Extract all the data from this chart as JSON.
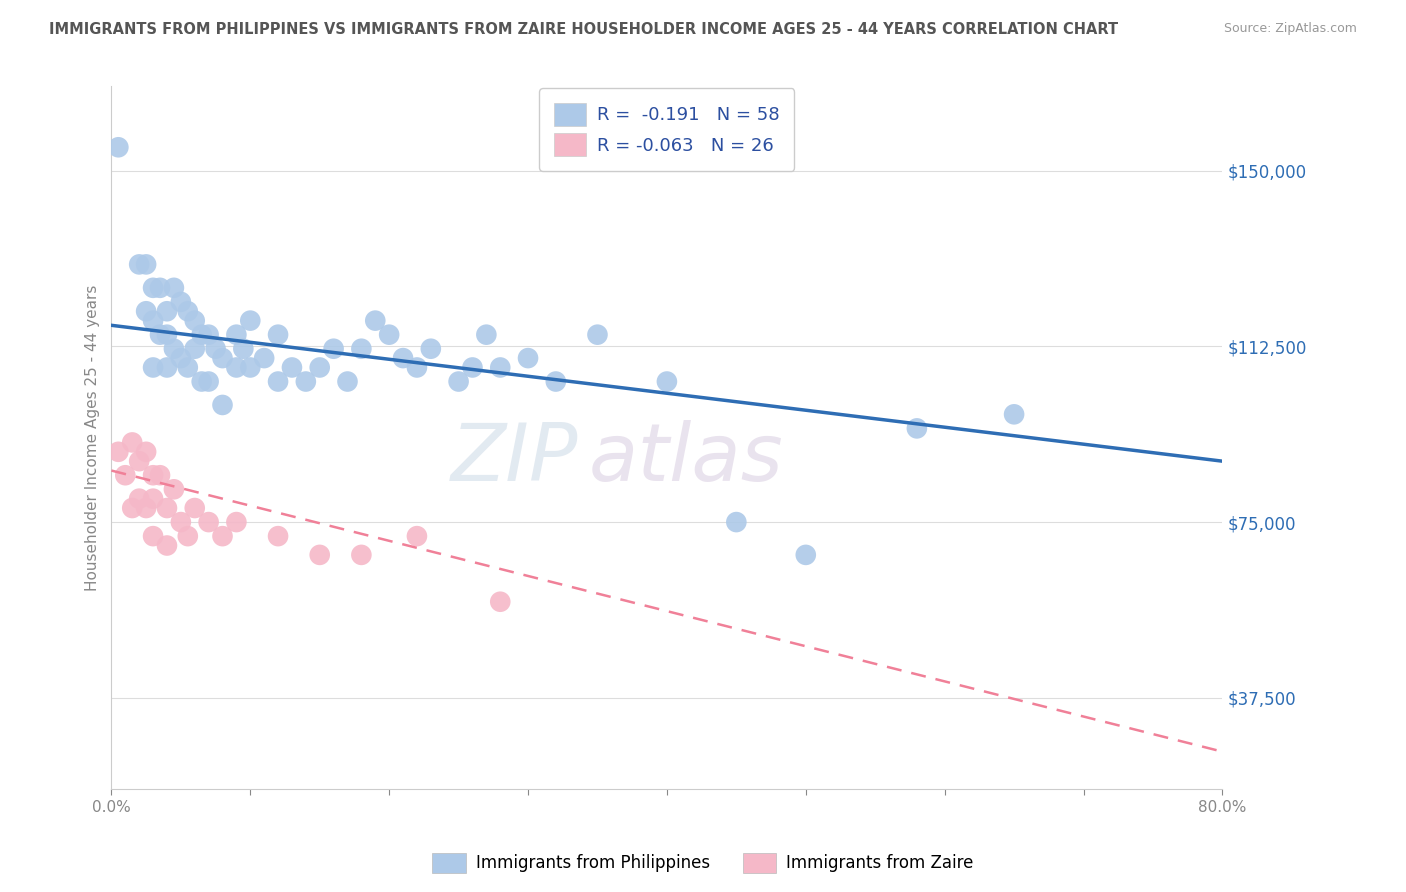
{
  "title": "IMMIGRANTS FROM PHILIPPINES VS IMMIGRANTS FROM ZAIRE HOUSEHOLDER INCOME AGES 25 - 44 YEARS CORRELATION CHART",
  "source": "Source: ZipAtlas.com",
  "ylabel": "Householder Income Ages 25 - 44 years",
  "xlim": [
    0.0,
    0.8
  ],
  "ylim": [
    18000,
    168000
  ],
  "yticks": [
    37500,
    75000,
    112500,
    150000
  ],
  "ytick_labels": [
    "$37,500",
    "$75,000",
    "$112,500",
    "$150,000"
  ],
  "xticks": [
    0.0,
    0.1,
    0.2,
    0.3,
    0.4,
    0.5,
    0.6,
    0.7,
    0.8
  ],
  "xtick_labels": [
    "0.0%",
    "",
    "",
    "",
    "",
    "",
    "",
    "",
    "80.0%"
  ],
  "philippines_R": "-0.191",
  "philippines_N": "58",
  "zaire_R": "-0.063",
  "zaire_N": "26",
  "philippines_color": "#adc9e8",
  "zaire_color": "#f5b8c8",
  "philippines_line_color": "#2e6db4",
  "zaire_line_color": "#f08098",
  "background_color": "#ffffff",
  "grid_color": "#dddddd",
  "watermark_zip": "ZIP",
  "watermark_atlas": "atlas",
  "title_color": "#555555",
  "source_color": "#999999",
  "legend_text_color": "#2c4fa0",
  "right_label_color": "#2e6db4",
  "axis_color": "#cccccc",
  "tick_color": "#888888",
  "philippines_x": [
    0.005,
    0.02,
    0.025,
    0.025,
    0.03,
    0.03,
    0.03,
    0.035,
    0.035,
    0.04,
    0.04,
    0.04,
    0.045,
    0.045,
    0.05,
    0.05,
    0.055,
    0.055,
    0.06,
    0.06,
    0.065,
    0.065,
    0.07,
    0.07,
    0.075,
    0.08,
    0.08,
    0.09,
    0.09,
    0.095,
    0.1,
    0.1,
    0.11,
    0.12,
    0.12,
    0.13,
    0.14,
    0.15,
    0.16,
    0.17,
    0.18,
    0.19,
    0.2,
    0.21,
    0.22,
    0.23,
    0.25,
    0.26,
    0.27,
    0.28,
    0.3,
    0.32,
    0.35,
    0.4,
    0.45,
    0.5,
    0.58,
    0.65
  ],
  "philippines_y": [
    155000,
    130000,
    130000,
    120000,
    125000,
    118000,
    108000,
    125000,
    115000,
    120000,
    115000,
    108000,
    125000,
    112000,
    122000,
    110000,
    120000,
    108000,
    118000,
    112000,
    115000,
    105000,
    115000,
    105000,
    112000,
    110000,
    100000,
    108000,
    115000,
    112000,
    118000,
    108000,
    110000,
    115000,
    105000,
    108000,
    105000,
    108000,
    112000,
    105000,
    112000,
    118000,
    115000,
    110000,
    108000,
    112000,
    105000,
    108000,
    115000,
    108000,
    110000,
    105000,
    115000,
    105000,
    75000,
    68000,
    95000,
    98000
  ],
  "zaire_x": [
    0.005,
    0.01,
    0.015,
    0.015,
    0.02,
    0.02,
    0.025,
    0.025,
    0.03,
    0.03,
    0.03,
    0.035,
    0.04,
    0.04,
    0.045,
    0.05,
    0.055,
    0.06,
    0.07,
    0.08,
    0.09,
    0.12,
    0.15,
    0.18,
    0.22,
    0.28
  ],
  "zaire_y": [
    90000,
    85000,
    92000,
    78000,
    88000,
    80000,
    90000,
    78000,
    85000,
    80000,
    72000,
    85000,
    78000,
    70000,
    82000,
    75000,
    72000,
    78000,
    75000,
    72000,
    75000,
    72000,
    68000,
    68000,
    72000,
    58000
  ],
  "phil_line_x": [
    0.0,
    0.8
  ],
  "phil_line_y": [
    117000,
    88000
  ],
  "zaire_line_x": [
    0.0,
    0.8
  ],
  "zaire_line_y": [
    86000,
    26000
  ]
}
